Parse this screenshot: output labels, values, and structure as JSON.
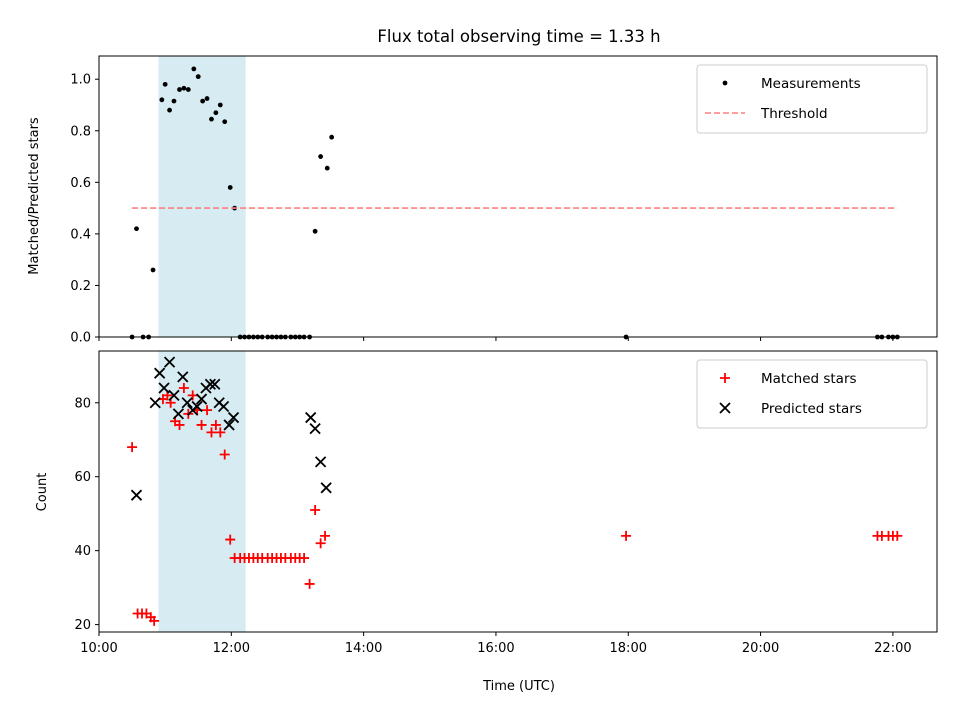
{
  "figure": {
    "title": "Flux total observing time = 1.33 h"
  },
  "chart_data": [
    {
      "type": "scatter",
      "ylabel": "Matched/Predicted stars",
      "xlabel": "",
      "xlim": [
        "10:00",
        "22:40"
      ],
      "ylim": [
        0,
        1.09
      ],
      "yticks": [
        "0.0",
        "0.2",
        "0.4",
        "0.6",
        "0.8",
        "1.0"
      ],
      "shaded_interval": {
        "x0": "10:54",
        "x1": "12:13",
        "color": "#add8e6"
      },
      "grid": false,
      "legend_position": "top-right",
      "series": [
        {
          "name": "Measurements",
          "marker": "dot",
          "color": "#000000",
          "points": [
            [
              "10:30",
              0.0
            ],
            [
              "10:34",
              0.42
            ],
            [
              "10:40",
              0.0
            ],
            [
              "10:45",
              0.0
            ],
            [
              "10:49",
              0.26
            ],
            [
              "10:57",
              0.92
            ],
            [
              "11:00",
              0.98
            ],
            [
              "11:04",
              0.88
            ],
            [
              "11:08",
              0.915
            ],
            [
              "11:13",
              0.96
            ],
            [
              "11:17",
              0.965
            ],
            [
              "11:21",
              0.96
            ],
            [
              "11:26",
              1.04
            ],
            [
              "11:30",
              1.01
            ],
            [
              "11:34",
              0.915
            ],
            [
              "11:38",
              0.925
            ],
            [
              "11:42",
              0.845
            ],
            [
              "11:46",
              0.87
            ],
            [
              "11:50",
              0.9
            ],
            [
              "11:54",
              0.835
            ],
            [
              "11:59",
              0.58
            ],
            [
              "12:03",
              0.5
            ],
            [
              "12:08",
              0.0
            ],
            [
              "12:12",
              0.0
            ],
            [
              "12:16",
              0.0
            ],
            [
              "12:20",
              0.0
            ],
            [
              "12:24",
              0.0
            ],
            [
              "12:28",
              0.0
            ],
            [
              "12:33",
              0.0
            ],
            [
              "12:37",
              0.0
            ],
            [
              "12:41",
              0.0
            ],
            [
              "12:45",
              0.0
            ],
            [
              "12:49",
              0.0
            ],
            [
              "12:54",
              0.0
            ],
            [
              "12:58",
              0.0
            ],
            [
              "13:02",
              0.0
            ],
            [
              "13:06",
              0.0
            ],
            [
              "13:11",
              0.0
            ],
            [
              "13:16",
              0.41
            ],
            [
              "13:21",
              0.7
            ],
            [
              "13:27",
              0.655
            ],
            [
              "13:31",
              0.775
            ],
            [
              "17:58",
              0.0
            ],
            [
              "21:46",
              0.0
            ],
            [
              "21:50",
              0.0
            ],
            [
              "21:56",
              0.0
            ],
            [
              "22:00",
              0.0
            ],
            [
              "22:04",
              0.0
            ]
          ]
        },
        {
          "name": "Threshold",
          "line_style": "dashed",
          "color": "#ff7f7f",
          "points": [
            [
              "10:30",
              0.5
            ],
            [
              "22:04",
              0.5
            ]
          ]
        }
      ]
    },
    {
      "type": "scatter",
      "ylabel": "Count",
      "xlabel": "Time (UTC)",
      "xlim": [
        "10:00",
        "22:40"
      ],
      "ylim": [
        18,
        94
      ],
      "yticks": [
        "20",
        "40",
        "60",
        "80"
      ],
      "xticks": [
        "10:00",
        "12:00",
        "14:00",
        "16:00",
        "18:00",
        "20:00",
        "22:00"
      ],
      "shaded_interval": {
        "x0": "10:54",
        "x1": "12:13",
        "color": "#add8e6"
      },
      "grid": false,
      "legend_position": "top-right",
      "series": [
        {
          "name": "Matched stars",
          "marker": "plus",
          "color": "#ff0000",
          "points": [
            [
              "10:30",
              68
            ],
            [
              "10:35",
              23
            ],
            [
              "10:39",
              23
            ],
            [
              "10:43",
              23
            ],
            [
              "10:47",
              22
            ],
            [
              "10:50",
              21
            ],
            [
              "10:58",
              81
            ],
            [
              "11:02",
              82
            ],
            [
              "11:05",
              80
            ],
            [
              "11:09",
              75
            ],
            [
              "11:13",
              74
            ],
            [
              "11:17",
              84
            ],
            [
              "11:21",
              77
            ],
            [
              "11:25",
              82
            ],
            [
              "11:29",
              78
            ],
            [
              "11:33",
              74
            ],
            [
              "11:38",
              78
            ],
            [
              "11:42",
              72
            ],
            [
              "11:46",
              74
            ],
            [
              "11:50",
              72
            ],
            [
              "11:54",
              66
            ],
            [
              "11:59",
              43
            ],
            [
              "12:03",
              38
            ],
            [
              "12:08",
              38
            ],
            [
              "12:12",
              38
            ],
            [
              "12:16",
              38
            ],
            [
              "12:20",
              38
            ],
            [
              "12:24",
              38
            ],
            [
              "12:28",
              38
            ],
            [
              "12:33",
              38
            ],
            [
              "12:37",
              38
            ],
            [
              "12:41",
              38
            ],
            [
              "12:45",
              38
            ],
            [
              "12:49",
              38
            ],
            [
              "12:54",
              38
            ],
            [
              "12:58",
              38
            ],
            [
              "13:02",
              38
            ],
            [
              "13:06",
              38
            ],
            [
              "13:11",
              31
            ],
            [
              "13:16",
              51
            ],
            [
              "13:21",
              42
            ],
            [
              "13:25",
              44
            ],
            [
              "17:58",
              44
            ],
            [
              "21:46",
              44
            ],
            [
              "21:50",
              44
            ],
            [
              "21:56",
              44
            ],
            [
              "22:00",
              44
            ],
            [
              "22:04",
              44
            ]
          ]
        },
        {
          "name": "Predicted stars",
          "marker": "x",
          "color": "#000000",
          "points": [
            [
              "10:34",
              55
            ],
            [
              "10:51",
              80
            ],
            [
              "10:55",
              88
            ],
            [
              "10:59",
              84
            ],
            [
              "11:04",
              91
            ],
            [
              "11:08",
              82
            ],
            [
              "11:12",
              77
            ],
            [
              "11:16",
              87
            ],
            [
              "11:20",
              80
            ],
            [
              "11:25",
              78
            ],
            [
              "11:29",
              79
            ],
            [
              "11:33",
              81
            ],
            [
              "11:37",
              84
            ],
            [
              "11:41",
              85
            ],
            [
              "11:45",
              85
            ],
            [
              "11:49",
              80
            ],
            [
              "11:53",
              79
            ],
            [
              "11:58",
              74
            ],
            [
              "12:02",
              76
            ],
            [
              "13:12",
              76
            ],
            [
              "13:16",
              73
            ],
            [
              "13:21",
              64
            ],
            [
              "13:26",
              57
            ]
          ]
        }
      ]
    }
  ]
}
